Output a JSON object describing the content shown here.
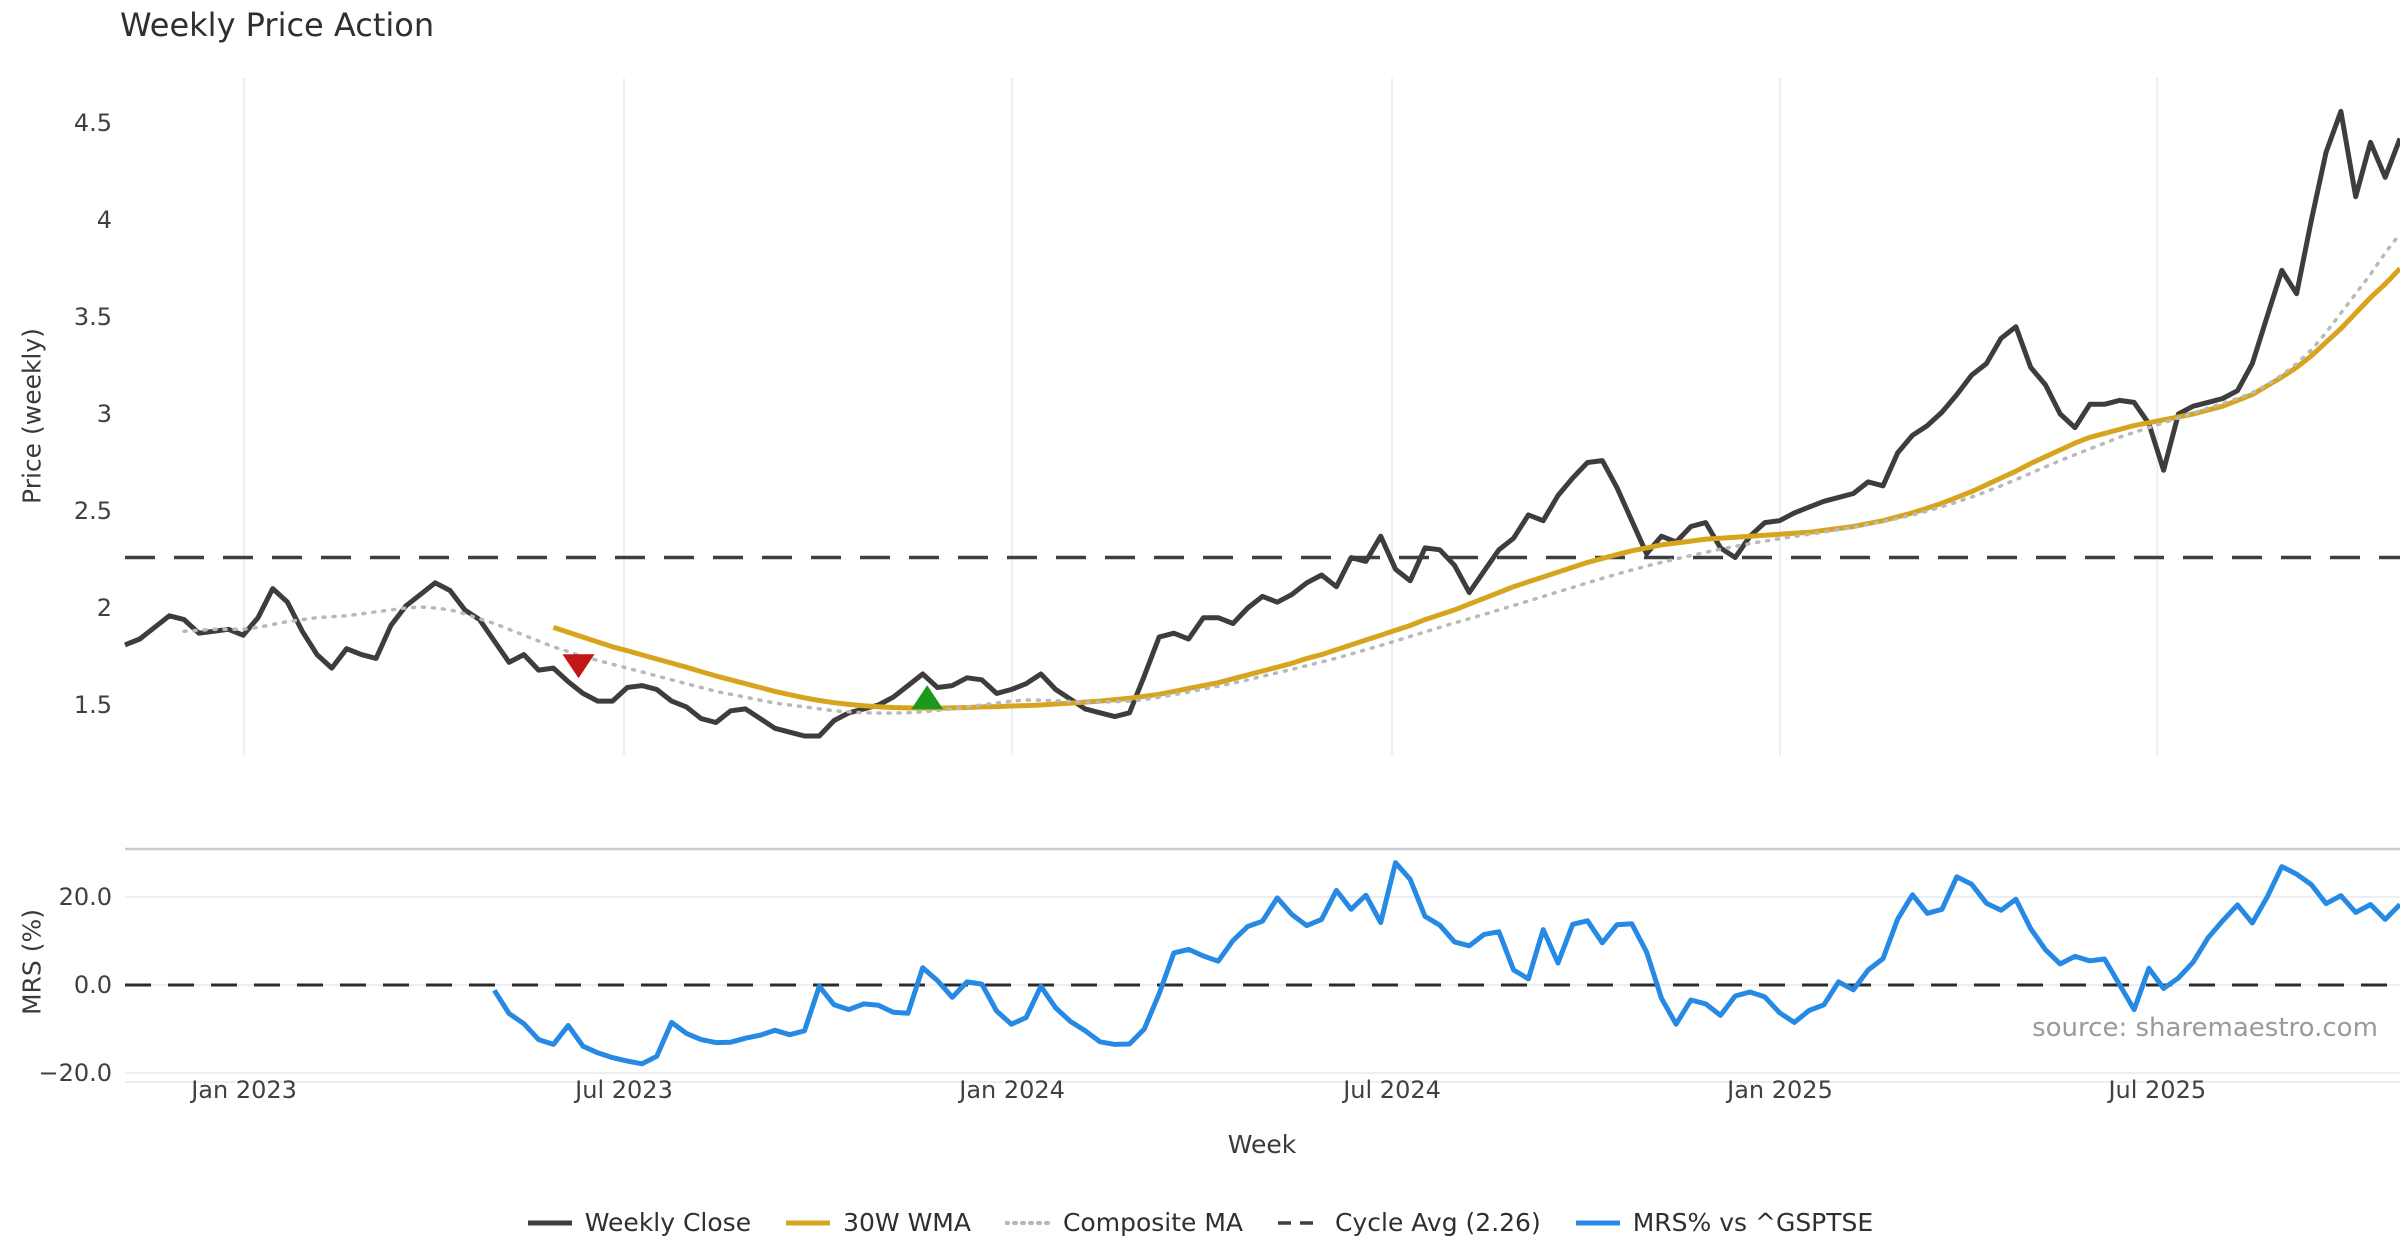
{
  "header": {
    "title": "Weekly Price Action"
  },
  "source_note": "source: sharemaestro.com",
  "axes": {
    "x_label": "Week",
    "price_label": "Price (weekly)",
    "mrs_label": "MRS (%)"
  },
  "colors": {
    "weekly_close": "#3d3d3d",
    "wma_30w": "#d6a51d",
    "composite_ma": "#b9b9b9",
    "cycle_avg": "#3f3f3f",
    "mrs": "#2689e3",
    "sell_marker": "#c21717",
    "buy_marker": "#1a9a1a",
    "grid": "#ededf2",
    "panel_border": "#cccccf",
    "zero_dash": "#2b2b2b"
  },
  "legend": {
    "items": [
      {
        "label": "Weekly Close",
        "style": "solid",
        "color": "#3d3d3d"
      },
      {
        "label": "30W WMA",
        "style": "solid",
        "color": "#d6a51d"
      },
      {
        "label": "Composite MA",
        "style": "dotted",
        "color": "#b9b9b9"
      },
      {
        "label": "Cycle Avg (2.26)",
        "style": "dashed",
        "color": "#3f3f3f"
      },
      {
        "label": "MRS% vs ^GSPTSE",
        "style": "solid",
        "color": "#2689e3"
      }
    ]
  },
  "chart_data": {
    "type": "line",
    "x_unit": "weekly observations, Nov 2022 - Nov 2025",
    "weeks_total": 155,
    "xlabel": "Week",
    "x_ticks": [
      {
        "label": "Jan 2023",
        "i": 8.06
      },
      {
        "label": "Jul 2023",
        "i": 33.78
      },
      {
        "label": "Jan 2024",
        "i": 60.05
      },
      {
        "label": "Jul 2024",
        "i": 85.77
      },
      {
        "label": "Jan 2025",
        "i": 112.03
      },
      {
        "label": "Jul 2025",
        "i": 137.57
      }
    ],
    "panels": [
      {
        "id": "price",
        "ylabel": "Price (weekly)",
        "ylim": [
          1.27,
          4.76
        ],
        "grid": "vertical",
        "yticks": [
          {
            "label": "4.5",
            "v": 4.5
          },
          {
            "label": "4",
            "v": 4.0
          },
          {
            "label": "3.5",
            "v": 3.5
          },
          {
            "label": "3",
            "v": 3.0
          },
          {
            "label": "2.5",
            "v": 2.5
          },
          {
            "label": "2",
            "v": 2.0
          },
          {
            "label": "1.5",
            "v": 1.5
          }
        ],
        "cycle_avg_value": 2.26,
        "series": [
          {
            "name": "Weekly Close",
            "style": "solid",
            "width": 5,
            "color": "#3d3d3d",
            "start_week": 0,
            "values": [
              1.81,
              1.84,
              1.9,
              1.96,
              1.94,
              1.87,
              1.88,
              1.89,
              1.86,
              1.95,
              2.1,
              2.03,
              1.88,
              1.76,
              1.69,
              1.79,
              1.76,
              1.74,
              1.91,
              2.01,
              2.07,
              2.13,
              2.09,
              1.99,
              1.94,
              1.83,
              1.72,
              1.76,
              1.68,
              1.69,
              1.62,
              1.56,
              1.52,
              1.52,
              1.59,
              1.6,
              1.58,
              1.52,
              1.49,
              1.43,
              1.41,
              1.47,
              1.48,
              1.43,
              1.38,
              1.36,
              1.34,
              1.34,
              1.42,
              1.46,
              1.48,
              1.5,
              1.54,
              1.6,
              1.66,
              1.59,
              1.6,
              1.64,
              1.63,
              1.56,
              1.58,
              1.61,
              1.66,
              1.58,
              1.53,
              1.48,
              1.46,
              1.44,
              1.46,
              1.65,
              1.85,
              1.87,
              1.84,
              1.95,
              1.95,
              1.92,
              2.0,
              2.06,
              2.03,
              2.07,
              2.13,
              2.17,
              2.11,
              2.26,
              2.24,
              2.37,
              2.2,
              2.14,
              2.31,
              2.3,
              2.22,
              2.08,
              2.19,
              2.3,
              2.36,
              2.48,
              2.45,
              2.58,
              2.67,
              2.75,
              2.76,
              2.62,
              2.45,
              2.28,
              2.37,
              2.34,
              2.42,
              2.44,
              2.31,
              2.26,
              2.37,
              2.44,
              2.45,
              2.49,
              2.52,
              2.55,
              2.57,
              2.59,
              2.65,
              2.63,
              2.8,
              2.89,
              2.94,
              3.01,
              3.1,
              3.2,
              3.26,
              3.39,
              3.45,
              3.24,
              3.15,
              3.0,
              2.93,
              3.05,
              3.05,
              3.07,
              3.06,
              2.95,
              2.71,
              3.0,
              3.04,
              3.06,
              3.08,
              3.12,
              3.26,
              3.5,
              3.74,
              3.62,
              4.0,
              4.35,
              4.56,
              4.12,
              4.4,
              4.22,
              4.42
            ]
          },
          {
            "name": "30W WMA",
            "style": "solid",
            "width": 5,
            "color": "#d6a51d",
            "start_week": 29,
            "values": [
              1.9,
              1.875,
              1.85,
              1.825,
              1.8,
              1.78,
              1.758,
              1.737,
              1.716,
              1.695,
              1.672,
              1.65,
              1.63,
              1.61,
              1.59,
              1.57,
              1.553,
              1.537,
              1.523,
              1.512,
              1.503,
              1.496,
              1.491,
              1.487,
              1.485,
              1.484,
              1.484,
              1.485,
              1.487,
              1.49,
              1.492,
              1.495,
              1.497,
              1.5,
              1.505,
              1.51,
              1.515,
              1.52,
              1.528,
              1.535,
              1.545,
              1.555,
              1.57,
              1.585,
              1.6,
              1.615,
              1.635,
              1.655,
              1.675,
              1.695,
              1.715,
              1.74,
              1.76,
              1.785,
              1.81,
              1.835,
              1.86,
              1.885,
              1.91,
              1.94,
              1.965,
              1.99,
              2.02,
              2.05,
              2.08,
              2.11,
              2.135,
              2.16,
              2.185,
              2.21,
              2.235,
              2.255,
              2.275,
              2.295,
              2.31,
              2.325,
              2.335,
              2.345,
              2.355,
              2.36,
              2.365,
              2.37,
              2.375,
              2.38,
              2.385,
              2.39,
              2.4,
              2.41,
              2.42,
              2.435,
              2.45,
              2.47,
              2.49,
              2.515,
              2.54,
              2.57,
              2.6,
              2.635,
              2.67,
              2.705,
              2.745,
              2.78,
              2.815,
              2.85,
              2.88,
              2.9,
              2.92,
              2.94,
              2.955,
              2.97,
              2.985,
              3.0,
              3.02,
              3.04,
              3.07,
              3.1,
              3.145,
              3.19,
              3.24,
              3.3,
              3.37,
              3.44,
              3.52,
              3.6,
              3.67,
              3.75
            ]
          },
          {
            "name": "Composite MA",
            "style": "dotted",
            "width": 3.5,
            "color": "#b9b9b9",
            "start_week": 4,
            "values": [
              1.88,
              1.885,
              1.89,
              1.89,
              1.89,
              1.9,
              1.915,
              1.93,
              1.94,
              1.95,
              1.955,
              1.96,
              1.97,
              1.98,
              1.99,
              2.0,
              2.005,
              2.0,
              1.99,
              1.97,
              1.945,
              1.92,
              1.89,
              1.86,
              1.83,
              1.8,
              1.775,
              1.75,
              1.73,
              1.71,
              1.69,
              1.67,
              1.65,
              1.63,
              1.61,
              1.59,
              1.57,
              1.555,
              1.54,
              1.525,
              1.51,
              1.5,
              1.49,
              1.48,
              1.47,
              1.465,
              1.46,
              1.458,
              1.458,
              1.46,
              1.465,
              1.472,
              1.48,
              1.49,
              1.5,
              1.51,
              1.52,
              1.525,
              1.525,
              1.522,
              1.518,
              1.515,
              1.515,
              1.517,
              1.52,
              1.528,
              1.54,
              1.553,
              1.567,
              1.582,
              1.597,
              1.613,
              1.63,
              1.648,
              1.666,
              1.684,
              1.703,
              1.722,
              1.742,
              1.763,
              1.785,
              1.807,
              1.83,
              1.853,
              1.877,
              1.9,
              1.923,
              1.945,
              1.967,
              1.99,
              2.013,
              2.036,
              2.06,
              2.083,
              2.106,
              2.13,
              2.153,
              2.175,
              2.196,
              2.216,
              2.235,
              2.253,
              2.27,
              2.287,
              2.303,
              2.318,
              2.332,
              2.345,
              2.357,
              2.369,
              2.38,
              2.392,
              2.404,
              2.417,
              2.431,
              2.446,
              2.462,
              2.48,
              2.5,
              2.522,
              2.546,
              2.572,
              2.6,
              2.63,
              2.662,
              2.695,
              2.728,
              2.76,
              2.79,
              2.82,
              2.85,
              2.88,
              2.905,
              2.93,
              2.955,
              2.98,
              3.005,
              3.03,
              3.055,
              3.08,
              3.11,
              3.15,
              3.2,
              3.26,
              3.33,
              3.42,
              3.52,
              3.62,
              3.72,
              3.83,
              3.93
            ]
          }
        ],
        "markers": [
          {
            "type": "sell-triangle-down",
            "week": 30.7,
            "price": 1.7,
            "color": "#c21717"
          },
          {
            "type": "buy-triangle-up",
            "week": 54.3,
            "price": 1.54,
            "color": "#1a9a1a"
          }
        ]
      },
      {
        "id": "mrs",
        "ylabel": "MRS (%)",
        "ylim": [
          -21.6,
          30.9
        ],
        "grid": "horizontal",
        "yticks": [
          {
            "label": "20.0",
            "v": 20
          },
          {
            "label": "0.0",
            "v": 0
          },
          {
            "label": "−20.0",
            "v": -20
          }
        ],
        "zero_line": 0,
        "series": [
          {
            "name": "MRS% vs ^GSPTSE",
            "style": "solid",
            "width": 5,
            "color": "#2689e3",
            "start_week": 25,
            "values": [
              -1.2,
              -6.5,
              -8.8,
              -12.4,
              -13.5,
              -9.2,
              -13.9,
              -15.4,
              -16.5,
              -17.3,
              -17.9,
              -16.2,
              -8.5,
              -11.0,
              -12.4,
              -13.1,
              -13.0,
              -12.1,
              -11.4,
              -10.3,
              -11.3,
              -10.4,
              -0.3,
              -4.5,
              -5.6,
              -4.3,
              -4.6,
              -6.2,
              -6.4,
              3.9,
              1.0,
              -2.8,
              0.7,
              0.2,
              -5.9,
              -8.9,
              -7.4,
              -0.3,
              -5.2,
              -8.3,
              -10.4,
              -12.9,
              -13.5,
              -13.4,
              -10.0,
              -2.0,
              7.3,
              8.1,
              6.6,
              5.4,
              10.1,
              13.3,
              14.5,
              19.8,
              16.0,
              13.5,
              14.9,
              21.5,
              17.2,
              20.4,
              14.2,
              27.8,
              24.0,
              15.6,
              13.6,
              9.8,
              8.9,
              11.5,
              12.1,
              3.4,
              1.4,
              12.6,
              5.0,
              13.8,
              14.6,
              9.6,
              13.7,
              13.9,
              7.5,
              -3.0,
              -8.9,
              -3.4,
              -4.3,
              -6.9,
              -2.5,
              -1.6,
              -2.7,
              -6.3,
              -8.5,
              -5.8,
              -4.5,
              0.7,
              -1.1,
              3.4,
              6.0,
              15.0,
              20.5,
              16.3,
              17.2,
              24.6,
              22.9,
              18.6,
              17.0,
              19.5,
              12.8,
              8.0,
              4.8,
              6.5,
              5.5,
              5.9,
              0.2,
              -5.6,
              3.8,
              -0.8,
              1.6,
              5.2,
              10.7,
              14.6,
              18.2,
              14.1,
              19.9,
              26.9,
              25.2,
              22.8,
              18.5,
              20.3,
              16.5,
              18.3,
              14.9,
              18.3
            ]
          }
        ]
      }
    ]
  }
}
